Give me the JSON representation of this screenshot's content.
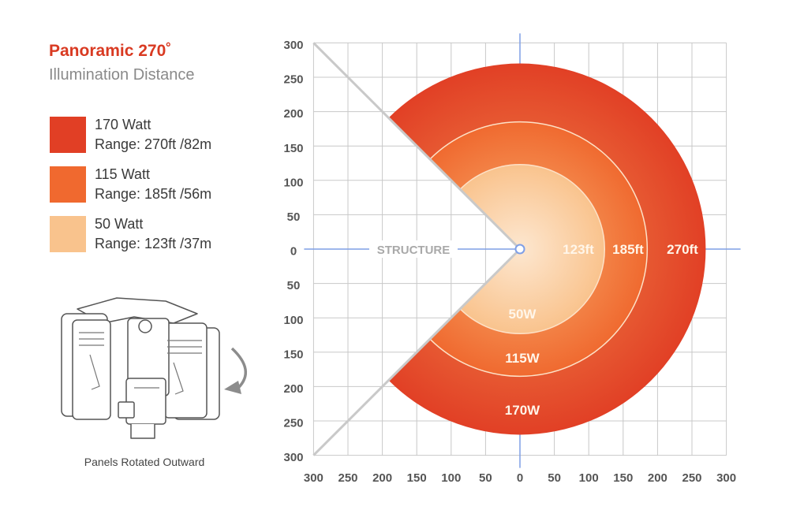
{
  "header": {
    "title": "Panoramic 270˚",
    "subtitle": "Illumination Distance"
  },
  "legend": [
    {
      "watt": "170 Watt",
      "range": "Range: 270ft /82m",
      "color": "#e13f25"
    },
    {
      "watt": "115 Watt",
      "range": "Range: 185ft /56m",
      "color": "#f0692f"
    },
    {
      "watt": "50 Watt",
      "range": "Range: 123ft /37m",
      "color": "#f9c38d"
    }
  ],
  "device": {
    "caption": "Panels Rotated Outward",
    "icon": "light-fixture-illustration"
  },
  "chart_data": {
    "type": "radial-coverage",
    "sweep_degrees": 270,
    "x_ticks": [
      "300",
      "250",
      "200",
      "150",
      "100",
      "50",
      "0",
      "50",
      "100",
      "150",
      "200",
      "250",
      "300"
    ],
    "y_ticks": [
      "300",
      "250",
      "200",
      "150",
      "100",
      "50",
      "0",
      "50",
      "100",
      "150",
      "200",
      "250",
      "300"
    ],
    "xlim": [
      -300,
      300
    ],
    "ylim": [
      -300,
      300
    ],
    "grid": true,
    "origin_label": "STRUCTURE",
    "rings": [
      {
        "radius": 270,
        "radius_label": "270ft",
        "watt_label": "170W",
        "color": "#e13f25"
      },
      {
        "radius": 185,
        "radius_label": "185ft",
        "watt_label": "115W",
        "color": "#f0692f"
      },
      {
        "radius": 123,
        "radius_label": "123ft",
        "watt_label": "50W",
        "color": "#f9c38d"
      }
    ],
    "colors": {
      "grid": "#c8c8c8",
      "axis": "#7f9fe6",
      "ring_outline": "#fde1c7",
      "boundary": "#c9c9c9",
      "tick_text": "#555555",
      "label_text": "#fff6ea",
      "origin_text": "#a9a9a9"
    }
  }
}
